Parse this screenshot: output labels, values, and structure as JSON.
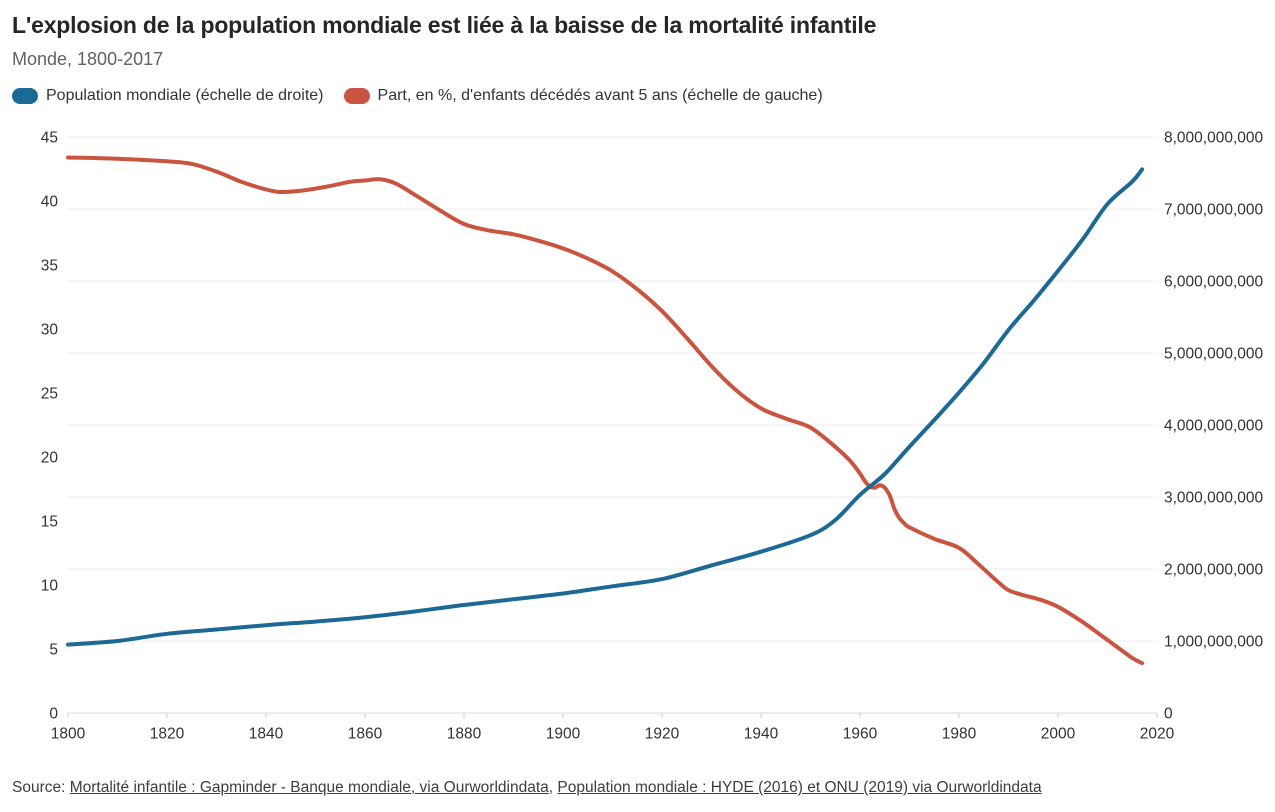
{
  "header": {
    "title": "L'explosion de la population mondiale est liée à la baisse de la mortalité infantile",
    "subtitle": "Monde, 1800-2017"
  },
  "legend": {
    "items": [
      {
        "label": "Population mondiale (échelle de droite)",
        "color": "#1d6996"
      },
      {
        "label": "Part, en %, d'enfants décédés avant 5 ans (échelle de gauche)",
        "color": "#c95440"
      }
    ]
  },
  "source": {
    "prefix": "Source: ",
    "separator": ", ",
    "links": [
      {
        "text": "Mortalité infantile : Gapminder - Banque mondiale, via Ourworldindata"
      },
      {
        "text": "Population mondiale : HYDE (2016) et ONU (2019) via Ourworldindata"
      }
    ]
  },
  "chart_data": {
    "type": "line",
    "title": "L'explosion de la population mondiale est liée à la baisse de la mortalité infantile",
    "subtitle": "Monde, 1800-2017",
    "grid": "horizontal-right-axis",
    "legend_position": "top-left",
    "x_axis": {
      "min": 1800,
      "max": 2020,
      "ticks": [
        1800,
        1820,
        1840,
        1860,
        1880,
        1900,
        1920,
        1940,
        1960,
        1980,
        2000,
        2020
      ]
    },
    "left_axis": {
      "label": "Part, en %, d'enfants décédés avant 5 ans",
      "min": 0,
      "max": 45,
      "ticks": [
        0,
        5,
        10,
        15,
        20,
        25,
        30,
        35,
        40,
        45
      ]
    },
    "right_axis": {
      "label": "Population mondiale",
      "min": 0,
      "max": 8000000000,
      "ticks": [
        0,
        1000000000,
        2000000000,
        3000000000,
        4000000000,
        5000000000,
        6000000000,
        7000000000,
        8000000000
      ]
    },
    "series": [
      {
        "name": "Part, en %, d'enfants décédés avant 5 ans (échelle de gauche)",
        "axis": "left",
        "color": "#c95440",
        "points": [
          [
            1800,
            43.4
          ],
          [
            1810,
            43.3
          ],
          [
            1820,
            43.1
          ],
          [
            1825,
            42.9
          ],
          [
            1830,
            42.3
          ],
          [
            1835,
            41.5
          ],
          [
            1840,
            40.9
          ],
          [
            1843,
            40.7
          ],
          [
            1847,
            40.8
          ],
          [
            1852,
            41.1
          ],
          [
            1857,
            41.5
          ],
          [
            1860,
            41.6
          ],
          [
            1863,
            41.7
          ],
          [
            1866,
            41.4
          ],
          [
            1870,
            40.5
          ],
          [
            1875,
            39.3
          ],
          [
            1880,
            38.2
          ],
          [
            1885,
            37.7
          ],
          [
            1890,
            37.4
          ],
          [
            1895,
            36.9
          ],
          [
            1900,
            36.3
          ],
          [
            1905,
            35.5
          ],
          [
            1910,
            34.5
          ],
          [
            1915,
            33.1
          ],
          [
            1920,
            31.4
          ],
          [
            1925,
            29.3
          ],
          [
            1930,
            27.1
          ],
          [
            1935,
            25.2
          ],
          [
            1940,
            23.8
          ],
          [
            1945,
            23.0
          ],
          [
            1950,
            22.3
          ],
          [
            1955,
            20.8
          ],
          [
            1958,
            19.7
          ],
          [
            1960,
            18.7
          ],
          [
            1961,
            18.1
          ],
          [
            1962,
            17.7
          ],
          [
            1963,
            17.6
          ],
          [
            1964,
            17.8
          ],
          [
            1965,
            17.6
          ],
          [
            1966,
            17.0
          ],
          [
            1967,
            15.9
          ],
          [
            1968,
            15.2
          ],
          [
            1969,
            14.8
          ],
          [
            1970,
            14.5
          ],
          [
            1975,
            13.6
          ],
          [
            1980,
            12.9
          ],
          [
            1984,
            11.6
          ],
          [
            1988,
            10.2
          ],
          [
            1990,
            9.6
          ],
          [
            1993,
            9.2
          ],
          [
            1996,
            8.9
          ],
          [
            2000,
            8.3
          ],
          [
            2005,
            7.1
          ],
          [
            2010,
            5.7
          ],
          [
            2015,
            4.3
          ],
          [
            2017,
            3.9
          ]
        ]
      },
      {
        "name": "Population mondiale (échelle de droite)",
        "axis": "right",
        "color": "#1d6996",
        "points": [
          [
            1800,
            950000000
          ],
          [
            1810,
            1000000000
          ],
          [
            1820,
            1100000000
          ],
          [
            1830,
            1160000000
          ],
          [
            1840,
            1220000000
          ],
          [
            1850,
            1270000000
          ],
          [
            1860,
            1330000000
          ],
          [
            1870,
            1410000000
          ],
          [
            1880,
            1500000000
          ],
          [
            1890,
            1580000000
          ],
          [
            1900,
            1660000000
          ],
          [
            1910,
            1760000000
          ],
          [
            1920,
            1860000000
          ],
          [
            1930,
            2050000000
          ],
          [
            1940,
            2240000000
          ],
          [
            1950,
            2470000000
          ],
          [
            1955,
            2680000000
          ],
          [
            1960,
            3030000000
          ],
          [
            1965,
            3320000000
          ],
          [
            1970,
            3700000000
          ],
          [
            1975,
            4070000000
          ],
          [
            1980,
            4450000000
          ],
          [
            1985,
            4860000000
          ],
          [
            1990,
            5320000000
          ],
          [
            1995,
            5720000000
          ],
          [
            2000,
            6140000000
          ],
          [
            2005,
            6580000000
          ],
          [
            2010,
            7070000000
          ],
          [
            2015,
            7380000000
          ],
          [
            2017,
            7550000000
          ]
        ]
      }
    ]
  }
}
